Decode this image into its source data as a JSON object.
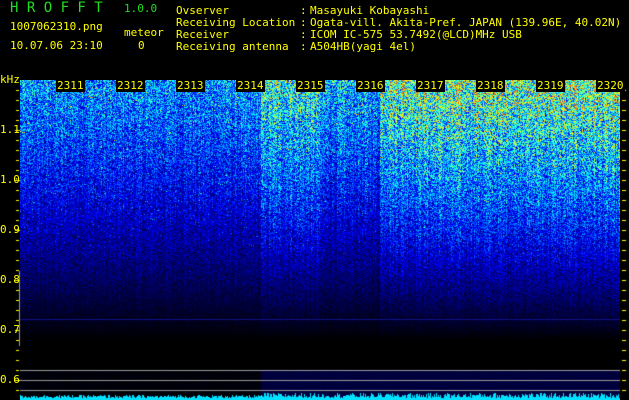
{
  "app": {
    "title": "H R O F F T",
    "version": "1.0.0"
  },
  "file": {
    "name": "1007062310.png",
    "datetime": "10.07.06 23:10"
  },
  "meteor": {
    "label": "meteor",
    "count": "0"
  },
  "info": [
    {
      "label": "Ovserver",
      "value": "Masayuki Kobayashi"
    },
    {
      "label": "Receiving Location",
      "value": "Ogata-vill. Akita-Pref. JAPAN (139.96E, 40.02N)"
    },
    {
      "label": "Receiver",
      "value": "ICOM IC-575 53.7492(@LCD)MHz USB"
    },
    {
      "label": "Receiving antenna",
      "value": "A504HB(yagi 4el)"
    }
  ],
  "axis": {
    "unit": "kHz",
    "ticks": [
      "1.1",
      "1.0",
      "0.9",
      "0.8",
      "0.7",
      "0.6"
    ]
  },
  "minutes": [
    "2311",
    "2312",
    "2313",
    "2314",
    "2315",
    "2316",
    "2317",
    "2318",
    "2319",
    "2320"
  ],
  "colors": {
    "text": "#ffff00",
    "title": "#22dd22",
    "grid": "#999999"
  }
}
